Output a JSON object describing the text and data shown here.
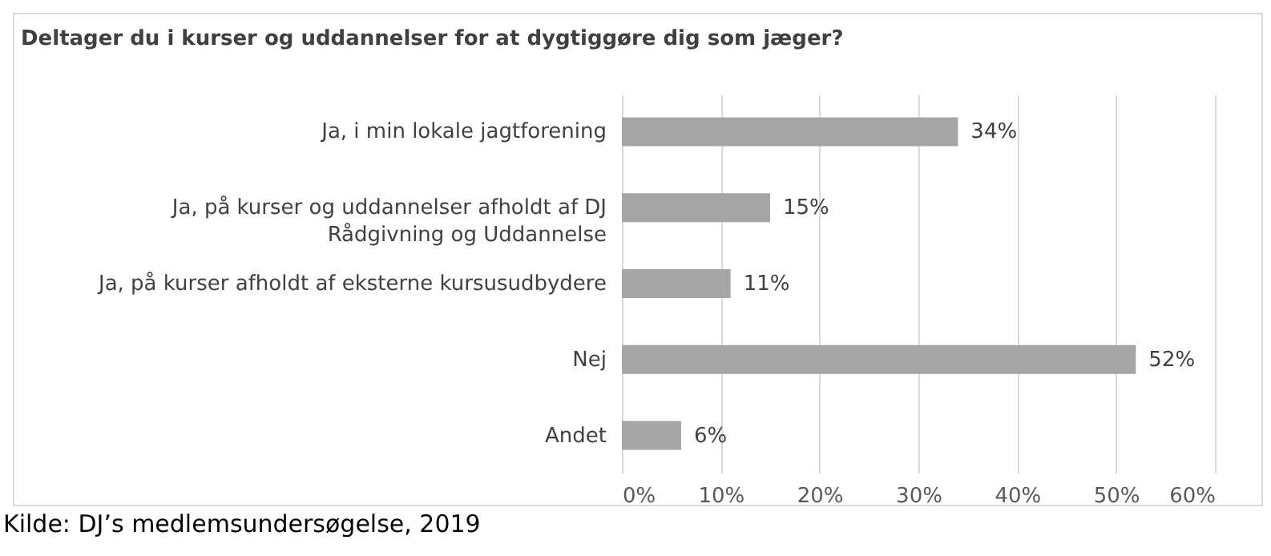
{
  "chart_data": {
    "type": "bar",
    "orientation": "horizontal",
    "title": "Deltager du i kurser og uddannelser for at dygtiggøre dig som jæger?",
    "categories": [
      "Ja, i min lokale jagtforening",
      "Ja, på kurser og uddannelser afholdt af DJ Rådgivning og Uddannelse",
      "Ja, på kurser afholdt af eksterne kursusudbydere",
      "Nej",
      "Andet"
    ],
    "values": [
      34,
      15,
      11,
      52,
      6
    ],
    "value_labels": [
      "34%",
      "15%",
      "11%",
      "52%",
      "6%"
    ],
    "color": "#a5a5a5",
    "xlim": [
      0,
      60
    ],
    "xticks": [
      {
        "value": 0,
        "label": "0%"
      },
      {
        "value": 10,
        "label": "10%"
      },
      {
        "value": 20,
        "label": "20%"
      },
      {
        "value": 30,
        "label": "30%"
      },
      {
        "value": 40,
        "label": "40%"
      },
      {
        "value": 50,
        "label": "50%"
      },
      {
        "value": 60,
        "label": "60%"
      }
    ],
    "grid": "x",
    "annotations": [
      "Kilde: DJ’s medlemsundersøgelse, 2019"
    ]
  }
}
